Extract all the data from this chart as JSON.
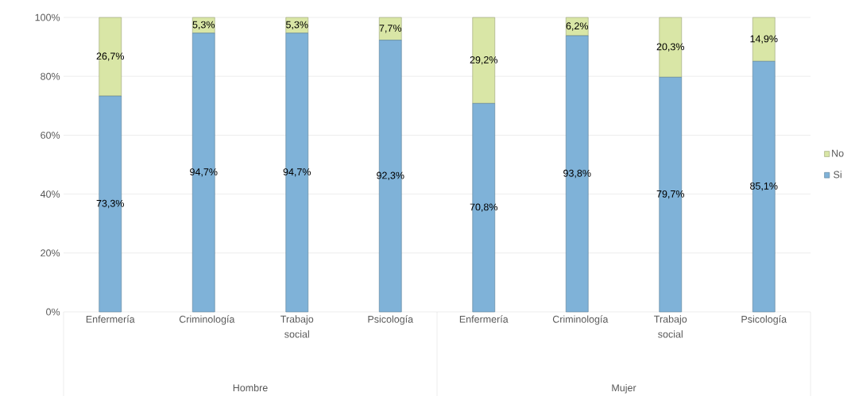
{
  "chart_data": {
    "type": "bar",
    "stacked": true,
    "categories": [
      "Enfermería",
      "Criminología",
      "Trabajo social",
      "Psicología",
      "Enfermería",
      "Criminología",
      "Trabajo social",
      "Psicología"
    ],
    "series": [
      {
        "name": "Si",
        "color": "#7fb2d8",
        "values": [
          73.3,
          94.7,
          94.7,
          92.3,
          70.8,
          93.8,
          79.7,
          85.1
        ],
        "value_labels": [
          "73,3%",
          "94,7%",
          "94,7%",
          "92,3%",
          "70,8%",
          "93,8%",
          "79,7%",
          "85,1%"
        ]
      },
      {
        "name": "No",
        "color": "#d9e6a6",
        "values": [
          26.7,
          5.3,
          5.3,
          7.7,
          29.2,
          6.2,
          20.3,
          14.9
        ],
        "value_labels": [
          "26,7%",
          "5,3%",
          "5,3%",
          "7,7%",
          "29,2%",
          "6,2%",
          "20,3%",
          "14,9%"
        ]
      }
    ],
    "ylim": [
      0,
      100
    ],
    "yticks": [
      {
        "value": 0,
        "label": "0%"
      },
      {
        "value": 20,
        "label": "20%"
      },
      {
        "value": 40,
        "label": "40%"
      },
      {
        "value": 60,
        "label": "60%"
      },
      {
        "value": 80,
        "label": "80%"
      },
      {
        "value": 100,
        "label": "100%"
      }
    ],
    "grid": "y",
    "legend": "right",
    "annotations": [
      "Hombre",
      "Mujer"
    ]
  }
}
